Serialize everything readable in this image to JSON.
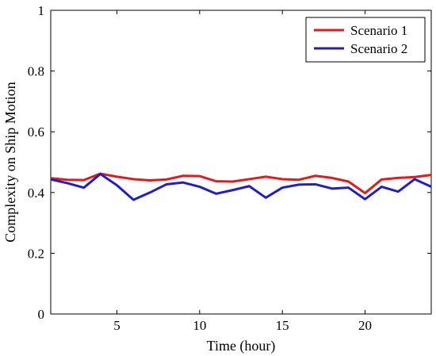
{
  "chart_data": {
    "type": "line",
    "title": "",
    "xlabel": "Time (hour)",
    "ylabel": "Complexity on Ship Motion",
    "xlim": [
      1,
      24
    ],
    "ylim": [
      0,
      1
    ],
    "xticks": [
      5,
      10,
      15,
      20
    ],
    "yticks": [
      0,
      0.2,
      0.4,
      0.6,
      0.8,
      1
    ],
    "ytick_labels": [
      "0",
      "0.2",
      "0.4",
      "0.6",
      "0.8",
      "1"
    ],
    "grid": false,
    "legend": "top-right",
    "x": [
      1,
      2,
      3,
      4,
      5,
      6,
      7,
      8,
      9,
      10,
      11,
      12,
      13,
      14,
      15,
      16,
      17,
      18,
      19,
      20,
      21,
      22,
      23,
      24
    ],
    "series": [
      {
        "name": "Scenario 1",
        "color": "#e31a1c",
        "values": [
          0.447,
          0.442,
          0.441,
          0.462,
          0.452,
          0.444,
          0.44,
          0.443,
          0.455,
          0.454,
          0.437,
          0.436,
          0.444,
          0.452,
          0.444,
          0.442,
          0.455,
          0.448,
          0.436,
          0.398,
          0.443,
          0.448,
          0.451,
          0.458
        ]
      },
      {
        "name": "Scenario 2",
        "color": "#1f1fc8",
        "values": [
          0.443,
          0.431,
          0.416,
          0.461,
          0.424,
          0.376,
          0.4,
          0.427,
          0.433,
          0.419,
          0.396,
          0.408,
          0.421,
          0.383,
          0.416,
          0.426,
          0.427,
          0.413,
          0.416,
          0.378,
          0.419,
          0.403,
          0.444,
          0.419
        ]
      }
    ]
  }
}
